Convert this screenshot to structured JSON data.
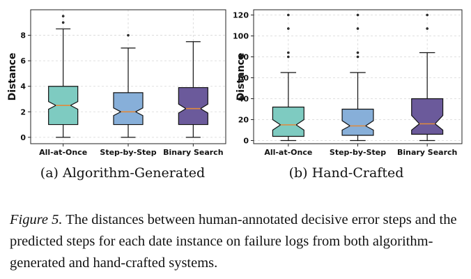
{
  "chart_data": [
    {
      "type": "box",
      "subcaption": "(a)  Algorithm-Generated",
      "ylabel": "Distance",
      "ylim": [
        -0.5,
        10
      ],
      "yticks": [
        0,
        2,
        4,
        6,
        8
      ],
      "grid": true,
      "categories": [
        "All-at-Once",
        "Step-by-Step",
        "Binary Search"
      ],
      "colors": [
        "#7ecbc1",
        "#87afd9",
        "#6b5a9b"
      ],
      "median_color": "#e08a3c",
      "boxes": [
        {
          "q1": 1,
          "median": 2.5,
          "q3": 4,
          "whisker_low": 0,
          "whisker_high": 8.5,
          "notch_low": 2.2,
          "notch_high": 2.8,
          "fliers": [
            9,
            9.5
          ]
        },
        {
          "q1": 1,
          "median": 2,
          "q3": 3.5,
          "whisker_low": 0,
          "whisker_high": 7,
          "notch_low": 1.7,
          "notch_high": 2.3,
          "fliers": [
            8
          ]
        },
        {
          "q1": 1,
          "median": 2.25,
          "q3": 3.9,
          "whisker_low": 0,
          "whisker_high": 7.5,
          "notch_low": 1.9,
          "notch_high": 2.6,
          "fliers": []
        }
      ]
    },
    {
      "type": "box",
      "subcaption": "(b)  Hand-Crafted",
      "ylabel": "Distance",
      "ylim": [
        -3,
        125
      ],
      "yticks": [
        0,
        20,
        40,
        60,
        80,
        100,
        120
      ],
      "grid": true,
      "categories": [
        "All-at-Once",
        "Step-by-Step",
        "Binary Search"
      ],
      "colors": [
        "#7ecbc1",
        "#87afd9",
        "#6b5a9b"
      ],
      "median_color": "#e08a3c",
      "boxes": [
        {
          "q1": 4,
          "median": 15,
          "q3": 32,
          "whisker_low": 0,
          "whisker_high": 65,
          "notch_low": 10,
          "notch_high": 20,
          "fliers": [
            80,
            84,
            107,
            120
          ]
        },
        {
          "q1": 5,
          "median": 14,
          "q3": 30,
          "whisker_low": 0,
          "whisker_high": 65,
          "notch_low": 10,
          "notch_high": 19,
          "fliers": [
            80,
            84,
            107,
            120
          ]
        },
        {
          "q1": 6,
          "median": 16,
          "q3": 40,
          "whisker_low": 0,
          "whisker_high": 84,
          "notch_low": 10,
          "notch_high": 24,
          "fliers": [
            107,
            120
          ]
        }
      ]
    }
  ],
  "caption": {
    "label": "Figure 5.",
    "text": " The distances between human-annotated decisive error steps and the predicted steps for each date instance on failure logs from both algorithm-generated and hand-crafted systems."
  }
}
